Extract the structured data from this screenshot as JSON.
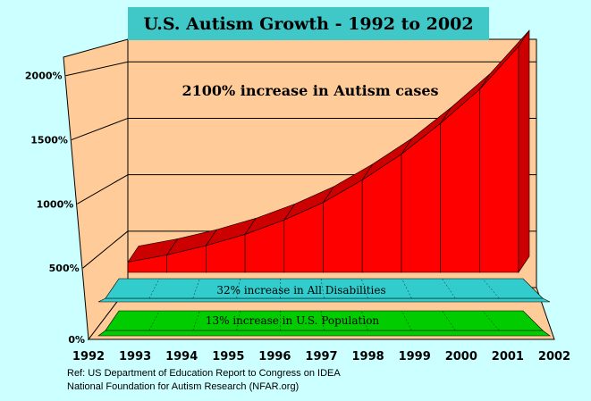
{
  "chart_data": {
    "type": "area",
    "title": "U.S. Autism Growth -  1992  to 2002",
    "x": [
      "1992",
      "1993",
      "1994",
      "1995",
      "1996",
      "1997",
      "1998",
      "1999",
      "2000",
      "2001",
      "2002"
    ],
    "y_ticks": [
      "0%",
      "500%",
      "1000%",
      "1500%",
      "2000%"
    ],
    "ylim": [
      0,
      2200
    ],
    "grid": true,
    "series": [
      {
        "name": "2100% increase in Autism cases",
        "color": "#ff0000",
        "values": [
          100,
          170,
          260,
          370,
          510,
          680,
          900,
          1150,
          1450,
          1780,
          2200
        ]
      },
      {
        "name": "32% increase in All Disabilities",
        "color": "#33cccc",
        "values": [
          32,
          32,
          32,
          32,
          32,
          32,
          32,
          32,
          32,
          32,
          32
        ]
      },
      {
        "name": "13% increase in U.S. Population",
        "color": "#00cc00",
        "values": [
          13,
          13,
          13,
          13,
          13,
          13,
          13,
          13,
          13,
          13,
          13
        ]
      }
    ]
  },
  "refs": {
    "line1": "Ref: US Department of Education Report to Congress on IDEA",
    "line2": "National Foundation for Autism Research (NFAR.org)"
  }
}
